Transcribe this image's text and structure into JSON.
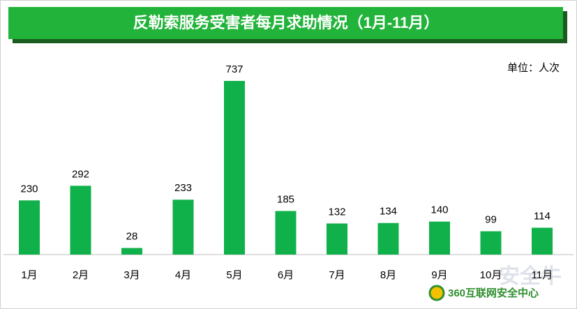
{
  "chart_data": {
    "type": "bar",
    "title": "反勒索服务受害者每月求助情况（1月-11月）",
    "unit_label": "单位：人次",
    "categories": [
      "1月",
      "2月",
      "3月",
      "4月",
      "5月",
      "6月",
      "7月",
      "8月",
      "9月",
      "10月",
      "11月"
    ],
    "values": [
      230,
      292,
      28,
      233,
      737,
      185,
      132,
      134,
      140,
      99,
      114
    ],
    "color": "#10b04a",
    "source": "360互联网安全中心",
    "watermark": "安全牛"
  }
}
